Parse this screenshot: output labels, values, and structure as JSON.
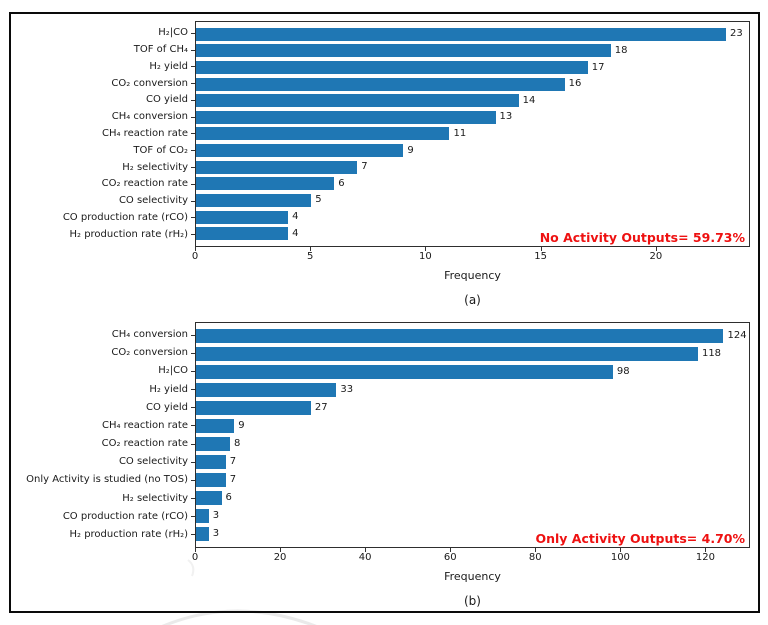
{
  "figure": {
    "background": "#ffffff",
    "frame_color": "#0a0a0a",
    "bar_color": "#1f77b4",
    "spine_color": "#2e2e2e",
    "annotation_color": "#ee1111"
  },
  "chart_data": [
    {
      "id": "a",
      "type": "bar",
      "orientation": "horizontal",
      "title": "",
      "xlabel": "Frequency",
      "ylabel": "",
      "sublabel": "(a)",
      "annotation": "No Activity Outputs= 59.73%",
      "grid": false,
      "legend": null,
      "xlim": [
        0,
        24
      ],
      "xticks": [
        0,
        5,
        10,
        15,
        20
      ],
      "categories": [
        "H₂|CO",
        "TOF of CH₄",
        "H₂ yield",
        "CO₂ conversion",
        "CO yield",
        "CH₄ conversion",
        "CH₄ reaction rate",
        "TOF of CO₂",
        "H₂ selectivity",
        "CO₂ reaction rate",
        "CO selectivity",
        "CO production rate (rCO)",
        "H₂ production rate (rH₂)"
      ],
      "values": [
        23,
        18,
        17,
        16,
        14,
        13,
        11,
        9,
        7,
        6,
        5,
        4,
        4
      ]
    },
    {
      "id": "b",
      "type": "bar",
      "orientation": "horizontal",
      "title": "",
      "xlabel": "Frequency",
      "ylabel": "",
      "sublabel": "(b)",
      "annotation": "Only Activity Outputs= 4.70%",
      "grid": false,
      "legend": null,
      "xlim": [
        0,
        130
      ],
      "xticks": [
        0,
        20,
        40,
        60,
        80,
        100,
        120
      ],
      "categories": [
        "CH₄ conversion",
        "CO₂ conversion",
        "H₂|CO",
        "H₂ yield",
        "CO yield",
        "CH₄ reaction rate",
        "CO₂ reaction rate",
        "CO selectivity",
        "Only Activity is studied (no TOS)",
        "H₂ selectivity",
        "CO production rate (rCO)",
        "H₂ production rate (rH₂)"
      ],
      "values": [
        124,
        118,
        98,
        33,
        27,
        9,
        8,
        7,
        7,
        6,
        3,
        3
      ]
    }
  ]
}
